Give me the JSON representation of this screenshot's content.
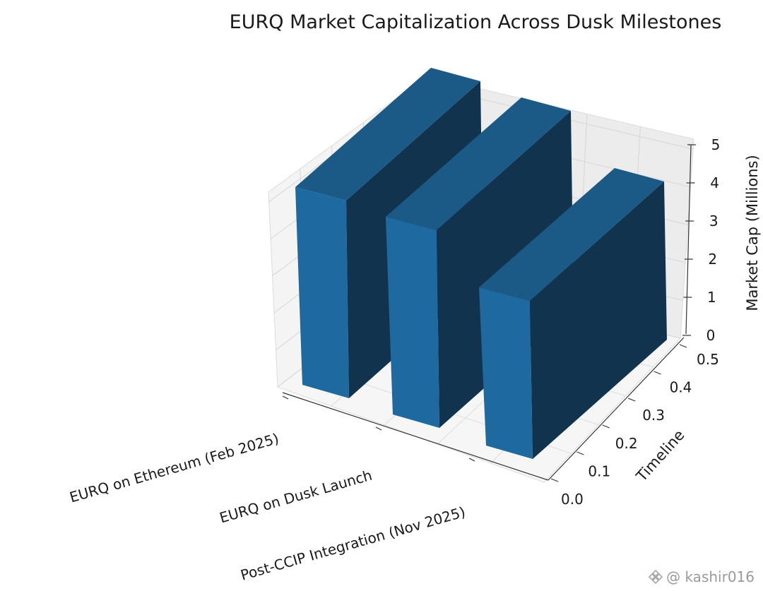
{
  "chart_data": {
    "type": "bar3d",
    "title": "EURQ Market Capitalization Across Dusk Milestones",
    "xlabel": "",
    "ylabel": "Timeline",
    "zlabel": "Market Cap (Millions)",
    "categories": [
      "EURQ on Ethereum (Feb 2025)",
      "EURQ on Dusk Launch",
      "Post-CCIP Integration (Nov 2025)"
    ],
    "values": [
      5,
      5,
      4
    ],
    "y_ticks": [
      "0.0",
      "0.1",
      "0.2",
      "0.3",
      "0.4",
      "0.5"
    ],
    "z_ticks": [
      "0",
      "1",
      "2",
      "3",
      "4",
      "5"
    ],
    "zlim": [
      0,
      5
    ],
    "ylim": [
      0,
      0.5
    ],
    "bar_color": "#1f6fa6",
    "grid": true
  },
  "watermark": {
    "text": "@ kashir016",
    "icon": "binance-diamond-icon"
  }
}
